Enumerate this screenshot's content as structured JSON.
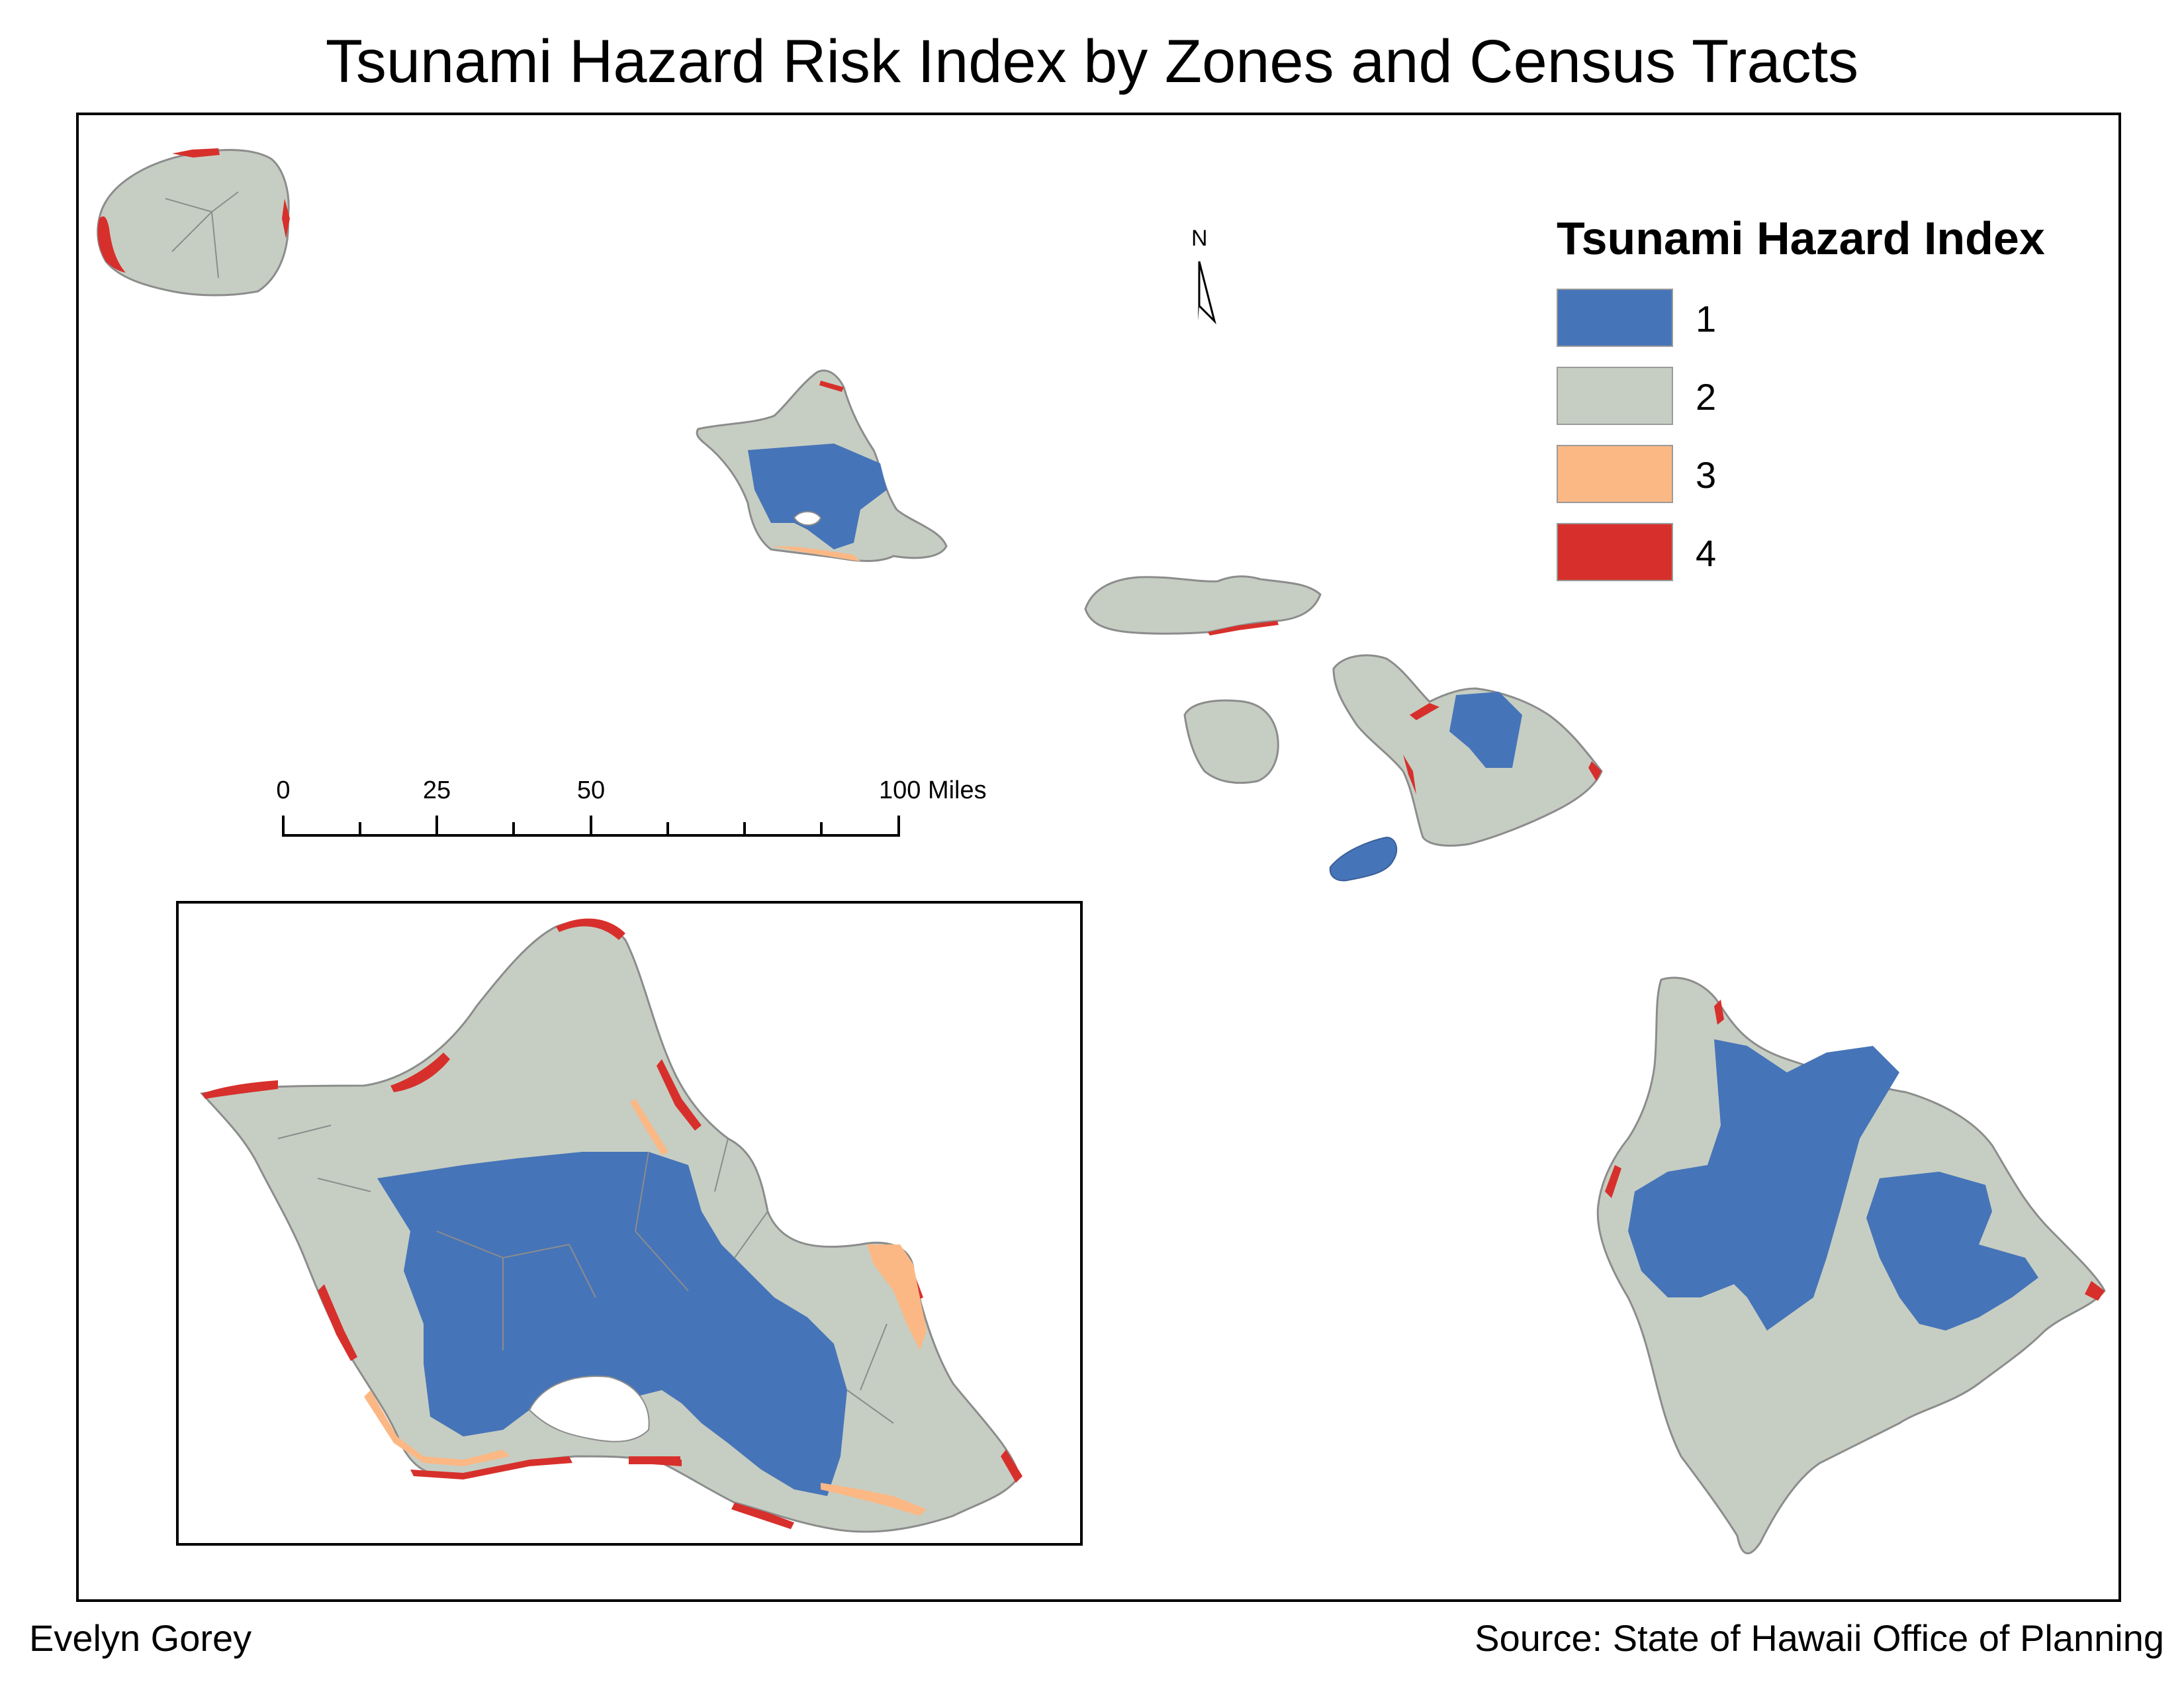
{
  "title": "Tsunami Hazard Risk Index by Zones and Census Tracts",
  "author": "Evelyn Gorey",
  "source": "Source: State of Hawaii Office of Planning",
  "north_arrow": {
    "label": "N"
  },
  "legend": {
    "title": "Tsunami Hazard Index",
    "items": [
      {
        "label": "1",
        "color": "#4674b8"
      },
      {
        "label": "2",
        "color": "#c6cec3"
      },
      {
        "label": "3",
        "color": "#fbb885"
      },
      {
        "label": "4",
        "color": "#d7302c"
      }
    ]
  },
  "scale_bar": {
    "ticks": [
      "0",
      "25",
      "50",
      "100 Miles"
    ]
  },
  "colors": {
    "land": "#c6cec3",
    "index1": "#4674b8",
    "index3": "#fbb885",
    "index4": "#d7302c",
    "outline": "#8c8c8c"
  },
  "map_content": {
    "islands": [
      "Kauai",
      "Oahu",
      "Molokai",
      "Lanai",
      "Maui",
      "Kahoolawe",
      "Hawaii"
    ],
    "inset": "Oahu"
  }
}
